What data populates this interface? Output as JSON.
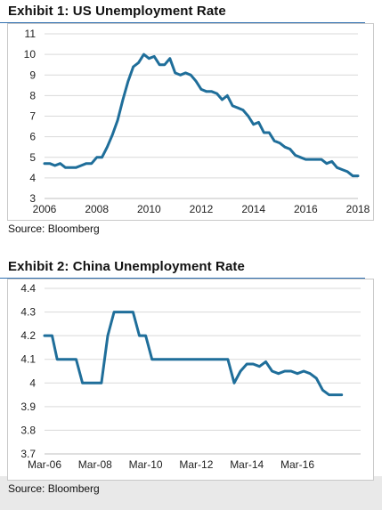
{
  "exhibit1": {
    "title": "Exhibit 1: US Unemployment Rate",
    "source": "Source: Bloomberg"
  },
  "exhibit2": {
    "title": "Exhibit 2: China Unemployment Rate",
    "source": "Source: Bloomberg"
  },
  "colors": {
    "line": "#1f6e9a",
    "grid": "#d9d9d9",
    "title_rule": "#2f6fb0"
  },
  "chart_data": [
    {
      "type": "line",
      "title": "Exhibit 1: US Unemployment Rate",
      "xlabel": "",
      "ylabel": "",
      "xlim": [
        2006,
        2018
      ],
      "ylim": [
        3,
        11
      ],
      "x_ticks": [
        "2006",
        "2008",
        "2010",
        "2012",
        "2014",
        "2016",
        "2018"
      ],
      "x_tick_values": [
        2006,
        2008,
        2010,
        2012,
        2014,
        2016,
        2018
      ],
      "y_ticks": [
        "3",
        "4",
        "5",
        "6",
        "7",
        "8",
        "9",
        "10",
        "11"
      ],
      "y_tick_values": [
        3,
        4,
        5,
        6,
        7,
        8,
        9,
        10,
        11
      ],
      "grid": "horizontal",
      "series": [
        {
          "x": [
            2006.0,
            2006.2,
            2006.4,
            2006.6,
            2006.8,
            2007.0,
            2007.2,
            2007.4,
            2007.6,
            2007.8,
            2008.0,
            2008.2,
            2008.4,
            2008.6,
            2008.8,
            2009.0,
            2009.2,
            2009.4,
            2009.6,
            2009.8,
            2010.0,
            2010.2,
            2010.4,
            2010.6,
            2010.8,
            2011.0,
            2011.2,
            2011.4,
            2011.6,
            2011.8,
            2012.0,
            2012.2,
            2012.4,
            2012.6,
            2012.8,
            2013.0,
            2013.2,
            2013.4,
            2013.6,
            2013.8,
            2014.0,
            2014.2,
            2014.4,
            2014.6,
            2014.8,
            2015.0,
            2015.2,
            2015.4,
            2015.6,
            2015.8,
            2016.0,
            2016.2,
            2016.4,
            2016.6,
            2016.8,
            2017.0,
            2017.2,
            2017.4,
            2017.6,
            2017.8,
            2018.0
          ],
          "values": [
            4.7,
            4.7,
            4.6,
            4.7,
            4.5,
            4.5,
            4.5,
            4.6,
            4.7,
            4.7,
            5.0,
            5.0,
            5.5,
            6.1,
            6.8,
            7.8,
            8.7,
            9.4,
            9.6,
            10.0,
            9.8,
            9.9,
            9.5,
            9.5,
            9.8,
            9.1,
            9.0,
            9.1,
            9.0,
            8.7,
            8.3,
            8.2,
            8.2,
            8.1,
            7.8,
            8.0,
            7.5,
            7.4,
            7.3,
            7.0,
            6.6,
            6.7,
            6.2,
            6.2,
            5.8,
            5.7,
            5.5,
            5.4,
            5.1,
            5.0,
            4.9,
            4.9,
            4.9,
            4.9,
            4.7,
            4.8,
            4.5,
            4.4,
            4.3,
            4.1,
            4.1
          ]
        }
      ]
    },
    {
      "type": "line",
      "title": "Exhibit 2: China Unemployment Rate",
      "xlabel": "",
      "ylabel": "",
      "xlim": [
        2006.0,
        2018.5
      ],
      "ylim": [
        3.7,
        4.4
      ],
      "x_ticks": [
        "Mar-06",
        "Mar-08",
        "Mar-10",
        "Mar-12",
        "Mar-14",
        "Mar-16"
      ],
      "x_tick_values": [
        2006.0,
        2008.0,
        2010.0,
        2012.0,
        2014.0,
        2016.0
      ],
      "y_ticks": [
        "3.7",
        "3.8",
        "3.9",
        "4",
        "4.1",
        "4.2",
        "4.3",
        "4.4"
      ],
      "y_tick_values": [
        3.7,
        3.8,
        3.9,
        4.0,
        4.1,
        4.2,
        4.3,
        4.4
      ],
      "grid": "horizontal",
      "series": [
        {
          "x": [
            2006.0,
            2006.3,
            2006.5,
            2006.75,
            2007.0,
            2007.25,
            2007.5,
            2007.75,
            2008.0,
            2008.25,
            2008.5,
            2008.75,
            2009.0,
            2009.25,
            2009.5,
            2009.75,
            2010.0,
            2010.25,
            2010.5,
            2011.0,
            2011.5,
            2012.0,
            2012.5,
            2013.0,
            2013.25,
            2013.5,
            2013.75,
            2014.0,
            2014.25,
            2014.5,
            2014.75,
            2015.0,
            2015.25,
            2015.5,
            2015.75,
            2016.0,
            2016.25,
            2016.5,
            2016.75,
            2017.0,
            2017.25,
            2017.5,
            2017.75
          ],
          "values": [
            4.2,
            4.2,
            4.1,
            4.1,
            4.1,
            4.1,
            4.0,
            4.0,
            4.0,
            4.0,
            4.2,
            4.3,
            4.3,
            4.3,
            4.3,
            4.2,
            4.2,
            4.1,
            4.1,
            4.1,
            4.1,
            4.1,
            4.1,
            4.1,
            4.1,
            4.0,
            4.05,
            4.08,
            4.08,
            4.07,
            4.09,
            4.05,
            4.04,
            4.05,
            4.05,
            4.04,
            4.05,
            4.04,
            4.02,
            3.97,
            3.95,
            3.95,
            3.95
          ]
        }
      ]
    }
  ]
}
